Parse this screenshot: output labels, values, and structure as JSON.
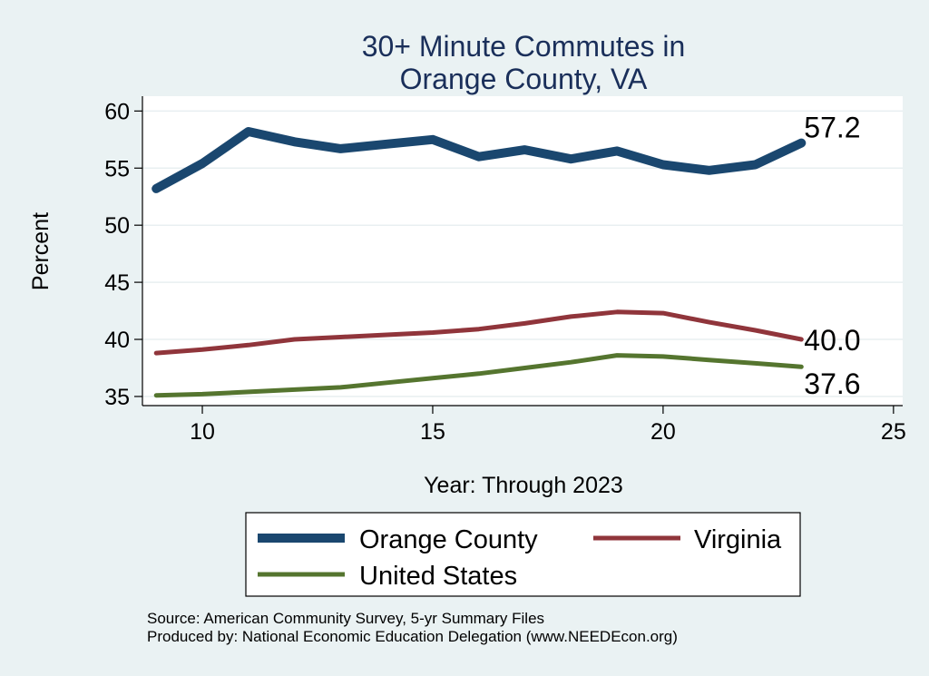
{
  "chart_data": {
    "type": "line",
    "title": [
      "30+ Minute Commutes in",
      "Orange County, VA"
    ],
    "xlabel": "Year: Through 2023",
    "ylabel": "Percent",
    "xlim": [
      8.7,
      25.2
    ],
    "ylim": [
      34.2,
      61.3
    ],
    "xticks": [
      10,
      15,
      20,
      25
    ],
    "yticks": [
      35,
      40,
      45,
      50,
      55,
      60
    ],
    "grid": true,
    "legend_position": "bottom",
    "x": [
      9,
      10,
      11,
      12,
      13,
      14,
      15,
      16,
      17,
      18,
      19,
      20,
      21,
      22,
      23
    ],
    "series": [
      {
        "name": "Orange County",
        "color": "#1a476f",
        "values": [
          53.2,
          55.4,
          58.2,
          57.3,
          56.7,
          57.1,
          57.5,
          56.0,
          56.6,
          55.8,
          56.5,
          55.3,
          54.8,
          55.3,
          57.2
        ],
        "end_label": "57.2"
      },
      {
        "name": "Virginia",
        "color": "#90353b",
        "values": [
          38.8,
          39.1,
          39.5,
          40.0,
          40.2,
          40.4,
          40.6,
          40.9,
          41.4,
          42.0,
          42.4,
          42.3,
          41.5,
          40.8,
          40.0
        ],
        "end_label": "40.0"
      },
      {
        "name": "United States",
        "color": "#55752f",
        "values": [
          35.1,
          35.2,
          35.4,
          35.6,
          35.8,
          36.2,
          36.6,
          37.0,
          37.5,
          38.0,
          38.6,
          38.5,
          38.2,
          37.9,
          37.6
        ],
        "end_label": "37.6"
      }
    ]
  },
  "footer": {
    "source": "Source: American Community Survey, 5-yr Summary Files",
    "produced": "Produced by: National Economic Education Delegation (www.NEEDEcon.org)"
  }
}
